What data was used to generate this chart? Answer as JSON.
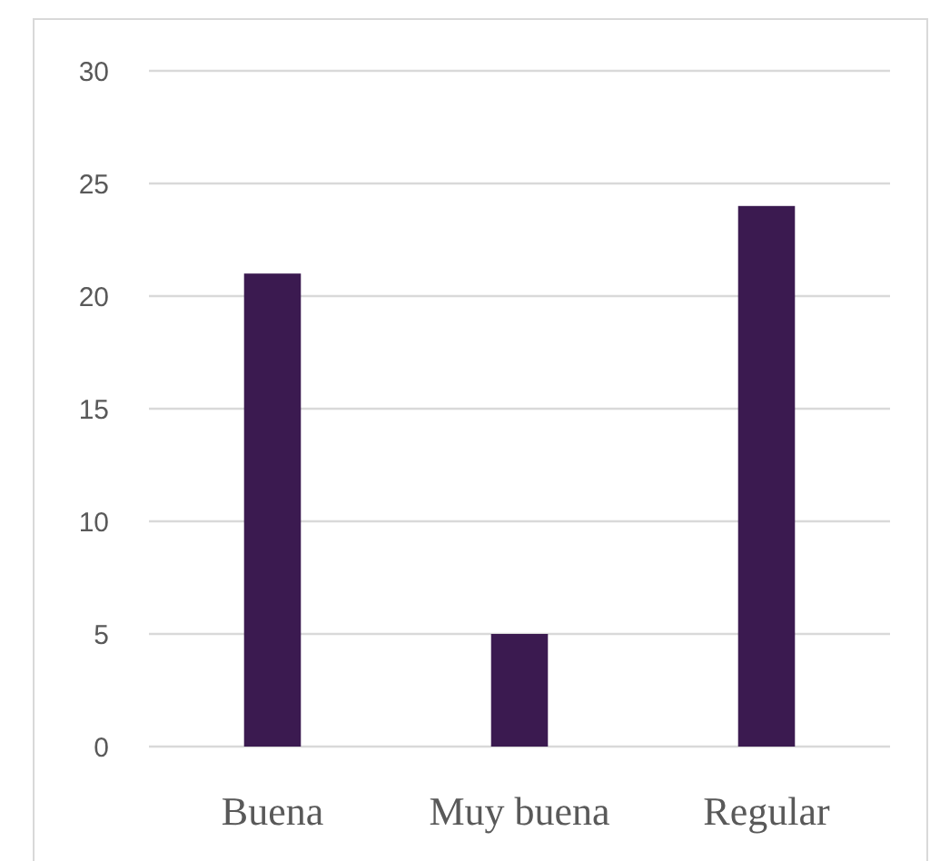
{
  "chart_data": {
    "type": "bar",
    "categories": [
      "Buena",
      "Muy buena",
      "Regular"
    ],
    "values": [
      21,
      5,
      24
    ],
    "color": "#3b1a50",
    "ylim": [
      0,
      30
    ],
    "yticks": [
      0,
      5,
      10,
      15,
      20,
      25,
      30
    ],
    "grid": "y"
  }
}
